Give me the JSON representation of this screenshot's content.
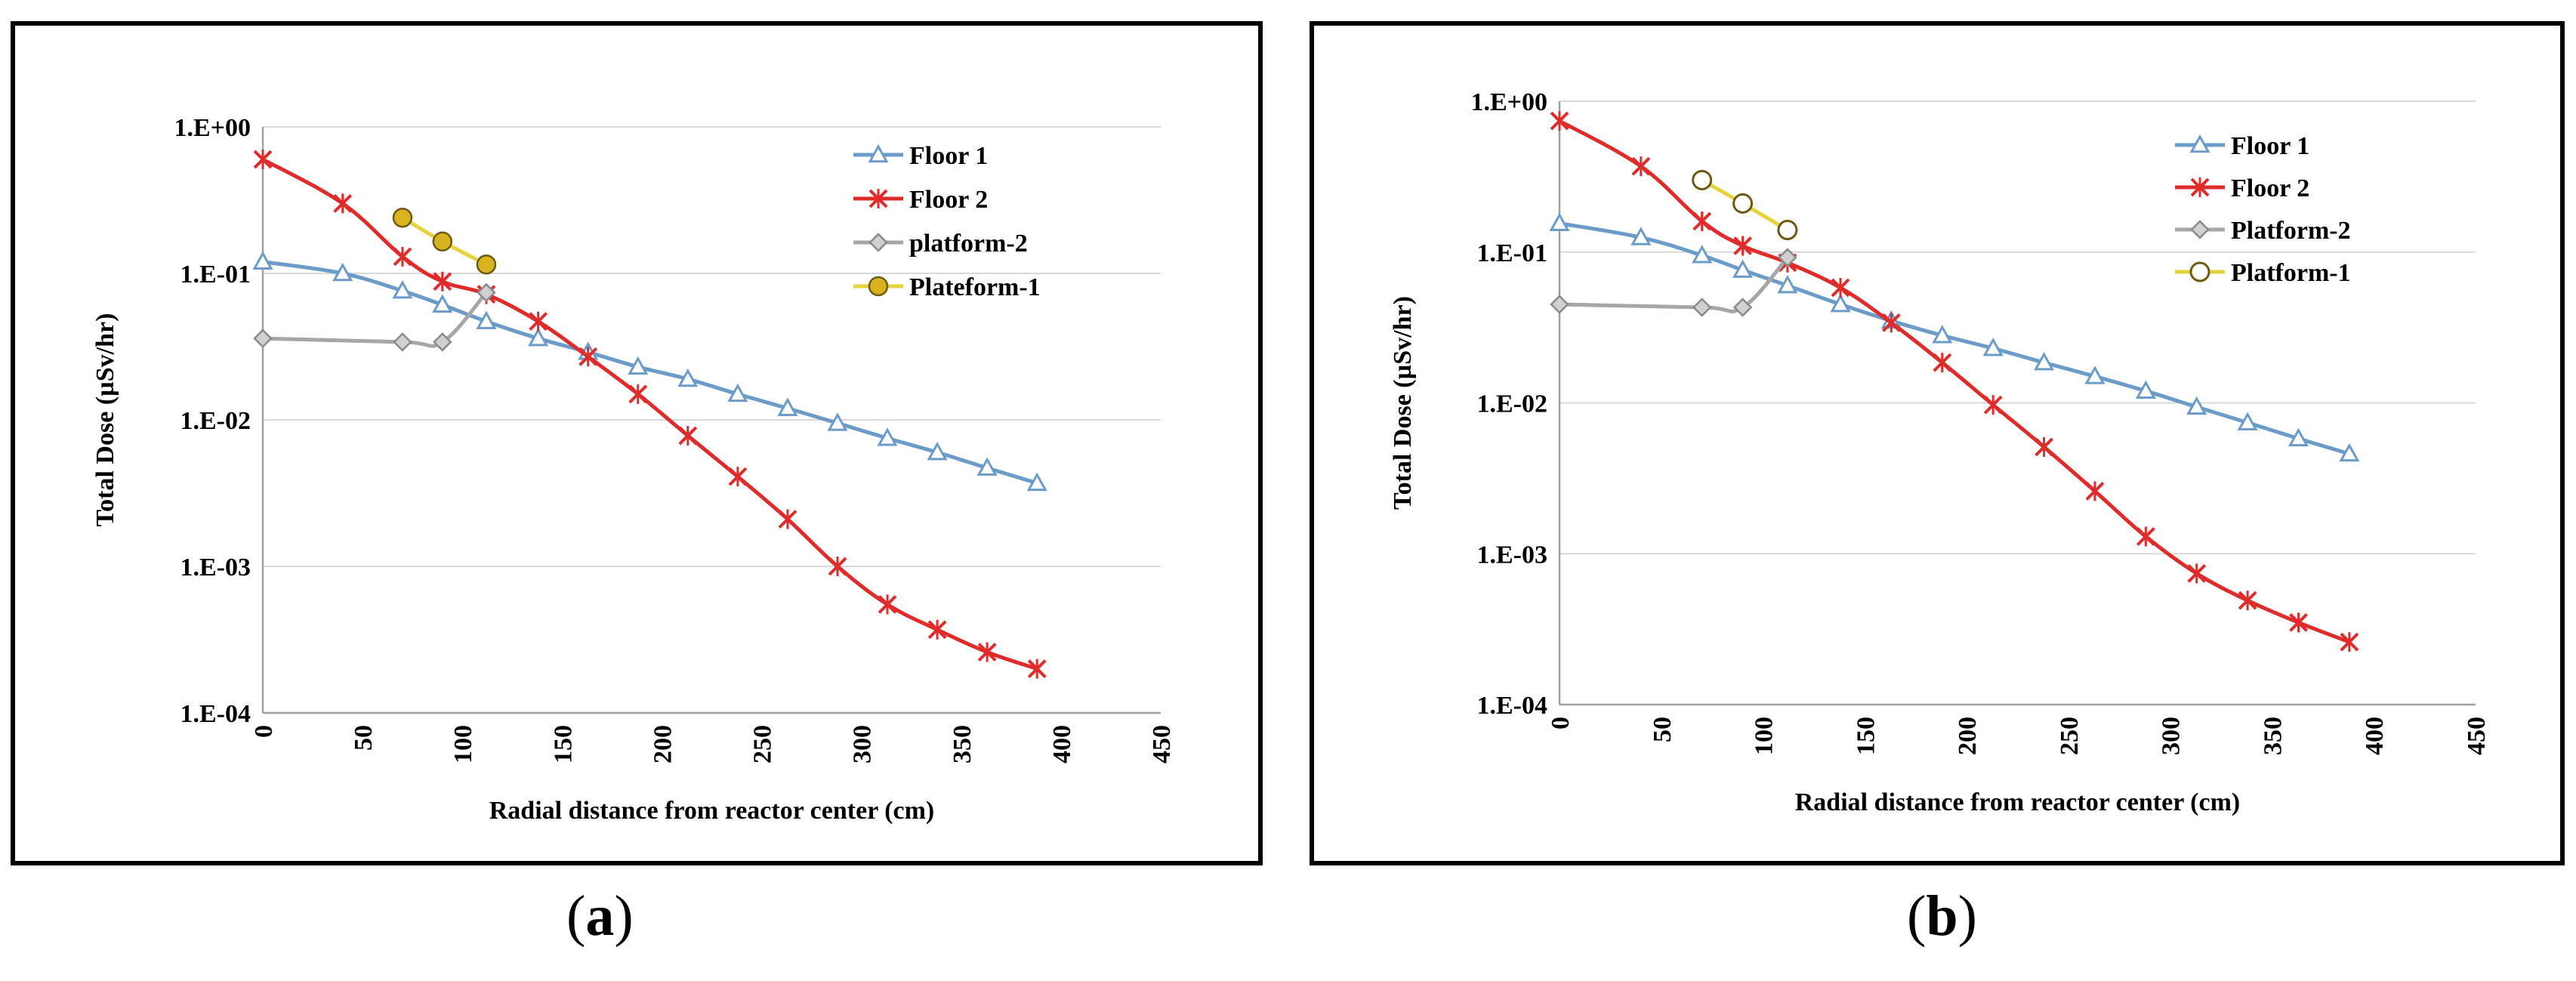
{
  "chart_data": [
    {
      "type": "line",
      "panel": "a",
      "caption": "a",
      "xlabel": "Radial distance from reactor center (cm)",
      "ylabel": "Total Dose (µSv/hr)",
      "xlim": [
        0,
        450
      ],
      "x_ticks": [
        "0",
        "50",
        "100",
        "150",
        "200",
        "250",
        "300",
        "350",
        "400",
        "450"
      ],
      "y_scale": "log",
      "ylim": [
        0.0001,
        1
      ],
      "y_ticks": [
        "1.E-04",
        "1.E-03",
        "1.E-02",
        "1.E-01",
        "1.E+00"
      ],
      "legend_position": "top-right",
      "series": [
        {
          "name": "Floor 1",
          "color": "#6a9bc9",
          "marker": "triangle",
          "x": [
            0,
            40,
            70,
            90,
            112,
            138,
            163,
            188,
            213,
            238,
            263,
            288,
            313,
            338,
            363,
            388
          ],
          "y": [
            0.12,
            0.1,
            0.076,
            0.061,
            0.047,
            0.036,
            0.029,
            0.023,
            0.019,
            0.015,
            0.012,
            0.0095,
            0.0075,
            0.006,
            0.0047,
            0.0037
          ]
        },
        {
          "name": "Floor 2",
          "color": "#e02b2b",
          "marker": "star",
          "x": [
            0,
            40,
            70,
            90,
            112,
            138,
            163,
            188,
            213,
            238,
            263,
            288,
            313,
            338,
            363,
            388
          ],
          "y": [
            0.6,
            0.3,
            0.13,
            0.088,
            0.072,
            0.047,
            0.027,
            0.015,
            0.0078,
            0.0041,
            0.0021,
            0.001,
            0.00055,
            0.00037,
            0.00026,
            0.0002
          ]
        },
        {
          "name": "platform-2",
          "color": "#a6a6a6",
          "marker": "diamond",
          "x": [
            0,
            70,
            90,
            112
          ],
          "y": [
            0.036,
            0.034,
            0.034,
            0.074
          ]
        },
        {
          "name": "Plateform-1",
          "color": "#e6d23a",
          "marker": "circle",
          "x": [
            70,
            90,
            112
          ],
          "y": [
            0.24,
            0.165,
            0.115
          ]
        }
      ]
    },
    {
      "type": "line",
      "panel": "b",
      "caption": "b",
      "xlabel": "Radial distance from reactor center (cm)",
      "ylabel": "Total Dose (µSv/hr)",
      "xlim": [
        0,
        450
      ],
      "x_ticks": [
        "0",
        "50",
        "100",
        "150",
        "200",
        "250",
        "300",
        "350",
        "400",
        "450"
      ],
      "y_scale": "log",
      "ylim": [
        0.0001,
        1
      ],
      "y_ticks": [
        "1.E-04",
        "1.E-03",
        "1.E-02",
        "1.E-01",
        "1.E+00"
      ],
      "legend_position": "top-right",
      "series": [
        {
          "name": "Floor 1",
          "color": "#6a9bc9",
          "marker": "triangle",
          "x": [
            0,
            40,
            70,
            90,
            112,
            138,
            163,
            188,
            213,
            238,
            263,
            288,
            313,
            338,
            363,
            388
          ],
          "y": [
            0.155,
            0.125,
            0.095,
            0.076,
            0.06,
            0.045,
            0.035,
            0.028,
            0.023,
            0.0185,
            0.015,
            0.012,
            0.0094,
            0.0074,
            0.0058,
            0.0046
          ]
        },
        {
          "name": "Floor 2",
          "color": "#e02b2b",
          "marker": "star",
          "x": [
            0,
            40,
            70,
            90,
            112,
            138,
            163,
            188,
            213,
            238,
            263,
            288,
            313,
            338,
            363,
            388
          ],
          "y": [
            0.74,
            0.37,
            0.16,
            0.11,
            0.085,
            0.058,
            0.034,
            0.0185,
            0.0097,
            0.0051,
            0.0026,
            0.0013,
            0.00074,
            0.00049,
            0.00035,
            0.00026
          ]
        },
        {
          "name": "Platform-2",
          "color": "#a6a6a6",
          "marker": "diamond",
          "x": [
            0,
            70,
            90,
            112
          ],
          "y": [
            0.045,
            0.043,
            0.043,
            0.092
          ]
        },
        {
          "name": "Platform-1",
          "color": "#e6d23a",
          "marker": "hollow-circle",
          "x": [
            70,
            90,
            112
          ],
          "y": [
            0.3,
            0.21,
            0.14
          ]
        }
      ]
    }
  ]
}
